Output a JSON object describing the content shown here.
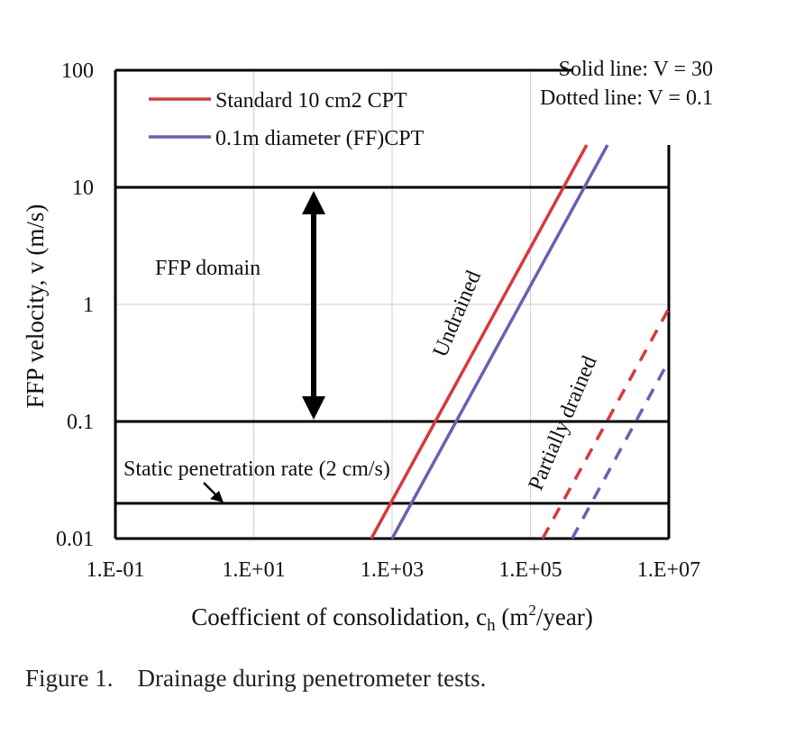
{
  "caption": "Figure 1.    Drainage during penetrometer tests.",
  "chart_data": {
    "type": "line",
    "xlabel": "Coefficient of consolidation, c",
    "xlabel_sub": "h",
    "xlabel_unit_open": " (m",
    "xlabel_unit_sup": "2",
    "xlabel_unit_close": "/year)",
    "ylabel": "FFP velocity, v (m/s)",
    "x_scale": "log",
    "y_scale": "log",
    "xlim": [
      0.1,
      10000000
    ],
    "ylim": [
      0.01,
      100
    ],
    "x_ticks": [
      0.1,
      10,
      1000,
      100000,
      10000000
    ],
    "x_tick_labels": [
      "1.E-01",
      "1.E+01",
      "1.E+03",
      "1.E+05",
      "1.E+07"
    ],
    "y_ticks": [
      0.01,
      0.1,
      1,
      10,
      100
    ],
    "y_tick_labels": [
      "0.01",
      "0.1",
      "1",
      "10",
      "100"
    ],
    "grid": true,
    "legend_position": "top-left",
    "series_colors": {
      "standard": "#d9383a",
      "ff": "#6a5fb5"
    },
    "series": [
      {
        "name": "Standard 10 cm2 CPT",
        "key": "standard",
        "style": "solid",
        "x": [
          500,
          650000
        ],
        "y": [
          0.01,
          23
        ]
      },
      {
        "name": "0.1m diameter (FF)CPT",
        "key": "ff",
        "style": "solid",
        "x": [
          1000,
          1300000
        ],
        "y": [
          0.01,
          23
        ]
      },
      {
        "name": "",
        "key": "standard",
        "style": "dotted",
        "x": [
          150000,
          10000000
        ],
        "y": [
          0.01,
          0.92
        ]
      },
      {
        "name": "",
        "key": "ff",
        "style": "dotted",
        "x": [
          400000,
          10000000
        ],
        "y": [
          0.01,
          0.33
        ]
      }
    ],
    "hlines": [
      {
        "y": 100,
        "x_to": 400000
      },
      {
        "y": 10,
        "x_to": 10000000
      },
      {
        "y": 0.1,
        "x_to": 10000000
      },
      {
        "y": 0.02,
        "x_to": 10000000
      }
    ],
    "notes": [
      "Solid line: V = 30",
      "Dotted line: V = 0.1"
    ],
    "annotations": {
      "ffp_domain": "FFP domain",
      "ffp_range": [
        0.1,
        10
      ],
      "static_rate": "Static penetration rate (2 cm/s)",
      "undrained": "Undrained",
      "partially_drained": "Partially drained"
    }
  }
}
